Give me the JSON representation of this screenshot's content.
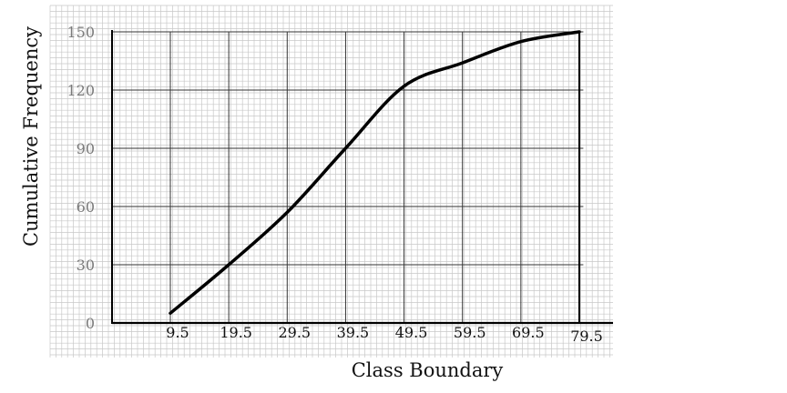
{
  "chart_data": {
    "type": "line",
    "title": "",
    "xlabel": "Class Boundary",
    "ylabel": "Cumulative Frequency",
    "x_ticks": [
      "9.5",
      "19.5",
      "29.5",
      "39.5",
      "49.5",
      "59.5",
      "69.5",
      "79.5"
    ],
    "y_ticks": [
      "0",
      "30",
      "60",
      "90",
      "120",
      "150"
    ],
    "xlim": [
      0,
      80.5
    ],
    "ylim": [
      0,
      150
    ],
    "grid": true,
    "legend": "none",
    "series": [
      {
        "x": [
          9.5,
          19.5,
          29.5,
          39.5,
          49.5,
          59.5,
          69.5,
          79.5
        ],
        "y": [
          5,
          30,
          57,
          90,
          122,
          134,
          145,
          150
        ]
      }
    ],
    "colors": {
      "curve": "#000000",
      "major_grid": "#333333",
      "minor_grid": "#c8c8c8"
    }
  }
}
